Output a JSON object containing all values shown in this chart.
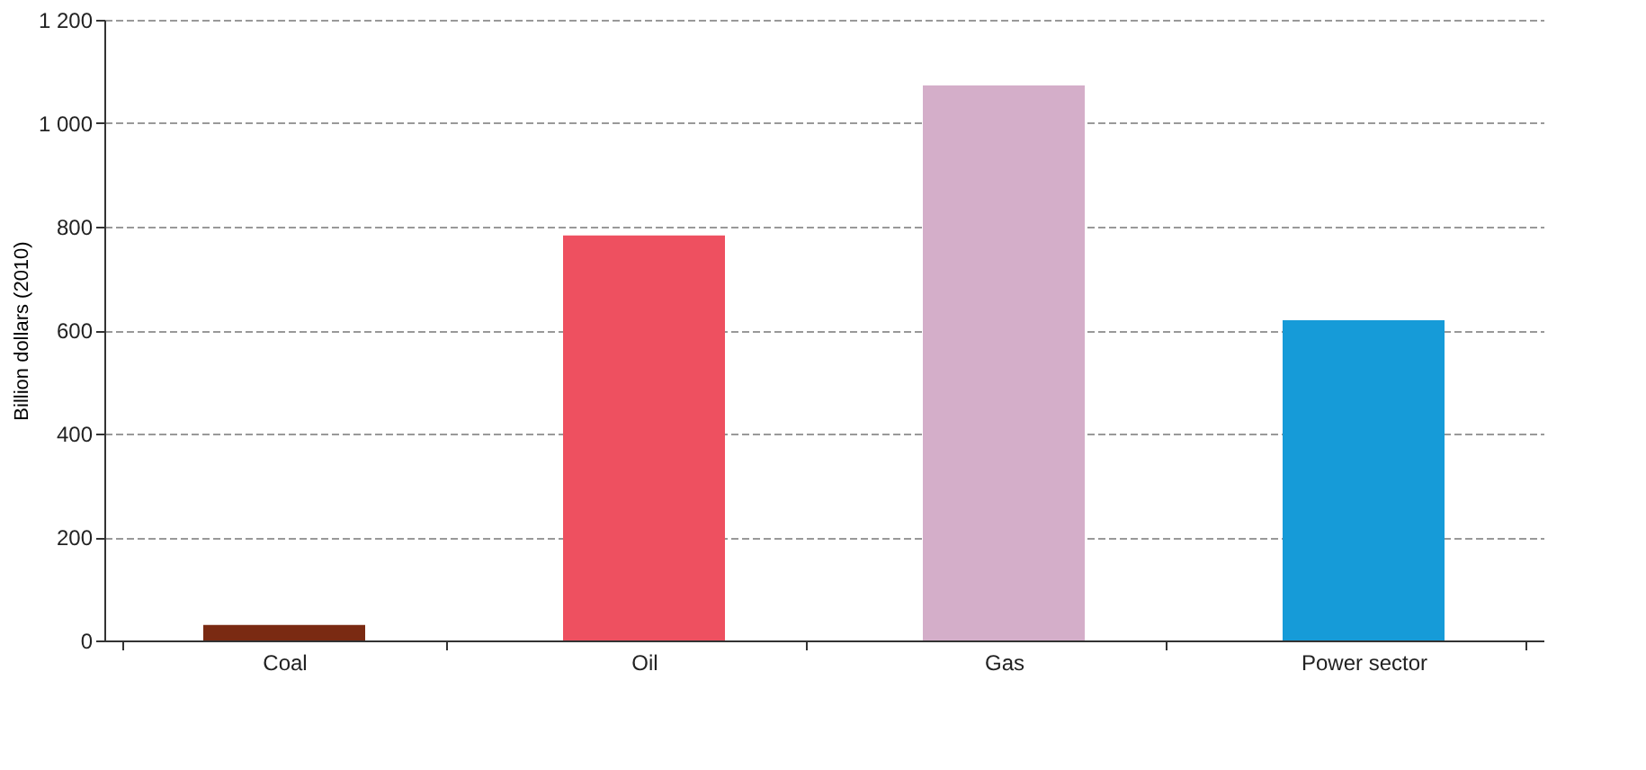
{
  "chart_data": {
    "type": "bar",
    "ylabel": "Billion dollars (2010)",
    "categories": [
      "Coal",
      "Oil",
      "Gas",
      "Power sector"
    ],
    "values": [
      30,
      783,
      1073,
      619
    ],
    "colors": [
      "#7a2a12",
      "#ee5060",
      "#d4aec9",
      "#169bd8"
    ],
    "ylim": [
      0,
      1200
    ],
    "yticks": [
      0,
      200,
      400,
      600,
      800,
      {
        "value": 1000,
        "label": "1 000"
      },
      {
        "value": 1200,
        "label": "1 200"
      }
    ],
    "grid": "y",
    "legend": false
  }
}
